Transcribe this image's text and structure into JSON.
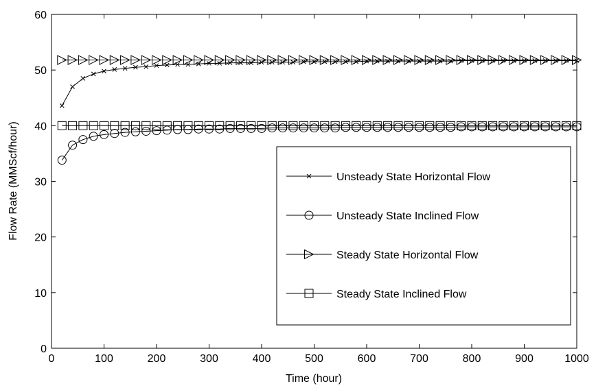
{
  "chart_data": {
    "type": "line",
    "xlabel": "Time (hour)",
    "ylabel": "Flow Rate (MMScf/hour)",
    "xlim": [
      0,
      1000
    ],
    "ylim": [
      0,
      60
    ],
    "xticks": [
      0,
      100,
      200,
      300,
      400,
      500,
      600,
      700,
      800,
      900,
      1000
    ],
    "yticks": [
      0,
      10,
      20,
      30,
      40,
      50,
      60
    ],
    "grid": false,
    "legend_position": "center-right",
    "x": [
      20,
      40,
      60,
      80,
      100,
      120,
      140,
      160,
      180,
      200,
      220,
      240,
      260,
      280,
      300,
      320,
      340,
      360,
      380,
      400,
      420,
      440,
      460,
      480,
      500,
      520,
      540,
      560,
      580,
      600,
      620,
      640,
      660,
      680,
      700,
      720,
      740,
      760,
      780,
      800,
      820,
      840,
      860,
      880,
      900,
      920,
      940,
      960,
      980,
      1000
    ],
    "series": [
      {
        "name": "Unsteady State Horizontal Flow",
        "marker": "x",
        "values": [
          43.6,
          47.0,
          48.5,
          49.3,
          49.8,
          50.1,
          50.3,
          50.5,
          50.6,
          50.8,
          50.9,
          51.0,
          51.0,
          51.1,
          51.2,
          51.2,
          51.3,
          51.3,
          51.3,
          51.4,
          51.4,
          51.4,
          51.4,
          51.5,
          51.5,
          51.5,
          51.5,
          51.5,
          51.5,
          51.6,
          51.6,
          51.6,
          51.6,
          51.6,
          51.6,
          51.6,
          51.6,
          51.6,
          51.7,
          51.7,
          51.7,
          51.7,
          51.7,
          51.7,
          51.7,
          51.7,
          51.7,
          51.7,
          51.7,
          51.7
        ]
      },
      {
        "name": "Unsteady State Inclined Flow",
        "marker": "circle",
        "values": [
          33.8,
          36.5,
          37.5,
          38.1,
          38.4,
          38.6,
          38.8,
          38.9,
          39.0,
          39.1,
          39.2,
          39.3,
          39.3,
          39.4,
          39.4,
          39.4,
          39.5,
          39.5,
          39.5,
          39.5,
          39.6,
          39.6,
          39.6,
          39.6,
          39.6,
          39.6,
          39.6,
          39.7,
          39.7,
          39.7,
          39.7,
          39.7,
          39.7,
          39.7,
          39.7,
          39.7,
          39.7,
          39.7,
          39.8,
          39.8,
          39.8,
          39.8,
          39.8,
          39.8,
          39.8,
          39.8,
          39.8,
          39.8,
          39.8,
          39.8
        ]
      },
      {
        "name": "Steady State Horizontal Flow",
        "marker": "triangle-right",
        "values": [
          51.8,
          51.8,
          51.8,
          51.8,
          51.8,
          51.8,
          51.8,
          51.8,
          51.8,
          51.8,
          51.8,
          51.8,
          51.8,
          51.8,
          51.8,
          51.8,
          51.8,
          51.8,
          51.8,
          51.8,
          51.8,
          51.8,
          51.8,
          51.8,
          51.8,
          51.8,
          51.8,
          51.8,
          51.8,
          51.8,
          51.8,
          51.8,
          51.8,
          51.8,
          51.8,
          51.8,
          51.8,
          51.8,
          51.8,
          51.8,
          51.8,
          51.8,
          51.8,
          51.8,
          51.8,
          51.8,
          51.8,
          51.8,
          51.8,
          51.8
        ]
      },
      {
        "name": "Steady State Inclined Flow",
        "marker": "square",
        "values": [
          40.0,
          40.0,
          40.0,
          40.0,
          40.0,
          40.0,
          40.0,
          40.0,
          40.0,
          40.0,
          40.0,
          40.0,
          40.0,
          40.0,
          40.0,
          40.0,
          40.0,
          40.0,
          40.0,
          40.0,
          40.0,
          40.0,
          40.0,
          40.0,
          40.0,
          40.0,
          40.0,
          40.0,
          40.0,
          40.0,
          40.0,
          40.0,
          40.0,
          40.0,
          40.0,
          40.0,
          40.0,
          40.0,
          40.0,
          40.0,
          40.0,
          40.0,
          40.0,
          40.0,
          40.0,
          40.0,
          40.0,
          40.0,
          40.0,
          40.0
        ]
      }
    ]
  }
}
